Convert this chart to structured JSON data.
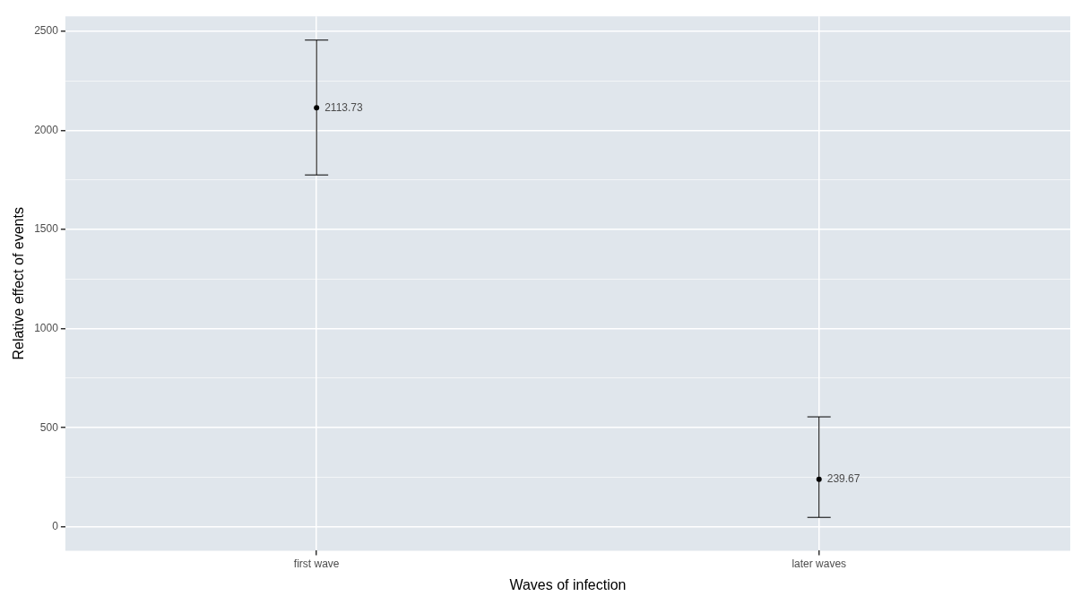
{
  "chart_data": {
    "type": "scatter",
    "xlabel": "Waves of infection",
    "ylabel": "Relative effect of events",
    "categories": [
      "first wave",
      "later waves"
    ],
    "values": [
      2113.73,
      239.67
    ],
    "errors": [
      [
        1775,
        2455
      ],
      [
        48,
        555
      ]
    ],
    "color": "#000000",
    "marker": "circle",
    "data_labels": true,
    "grid": true,
    "ylim": [
      -120,
      2575
    ],
    "yticks": [
      0,
      {
        "value": 250,
        "label": null
      },
      500,
      {
        "value": 750,
        "label": null
      },
      1000,
      {
        "value": 1250,
        "label": null
      },
      1500,
      {
        "value": 1750,
        "label": null
      },
      2000,
      {
        "value": 2250,
        "label": null
      },
      2500
    ]
  }
}
